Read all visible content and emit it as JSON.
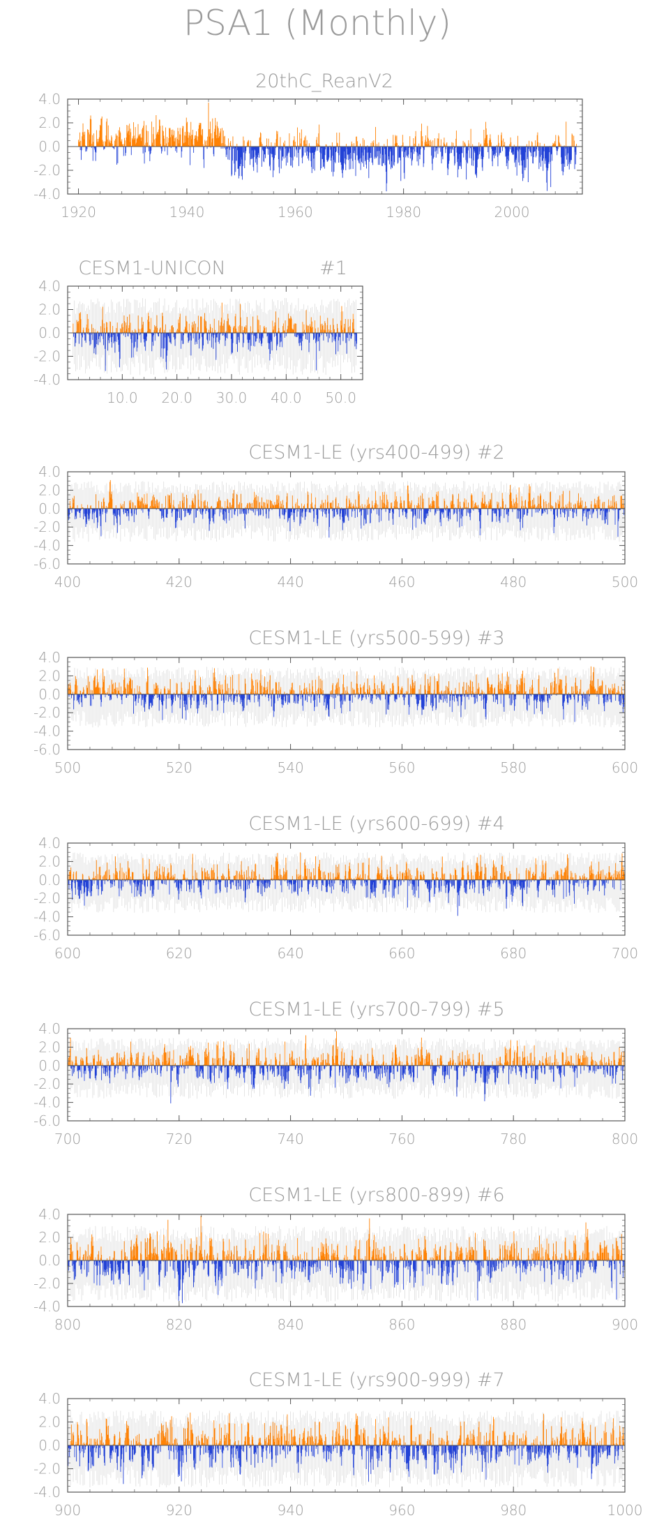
{
  "figure": {
    "title": "PSA1 (Monthly)"
  },
  "colors": {
    "positive": "#ff8000",
    "negative": "#1f3fd6",
    "axis": "#555555",
    "text": "#9a9a9a",
    "spread": "#c8c8c8"
  },
  "chart_data": [
    {
      "id": "panel-20thc",
      "type": "bar",
      "title": "20thC_ReanV2",
      "member": "",
      "xlim": [
        1918,
        2013
      ],
      "ylim": [
        -4,
        4
      ],
      "yticks": [
        "4.0",
        "2.0",
        "0.0",
        "-2.0",
        "-4.0"
      ],
      "ytick_values": [
        4,
        2,
        0,
        -2,
        -4
      ],
      "xticks": [
        "1920",
        "1940",
        "1960",
        "1980",
        "2000"
      ],
      "xtick_values": [
        1920,
        1940,
        1960,
        1980,
        2000
      ],
      "monthly_series": {
        "start": 1920,
        "end": 2011,
        "months_per_year": 12
      },
      "typical_amplitude": {
        "positive": 1.1,
        "negative": 1.3
      },
      "notable_values": [
        {
          "x": 1944,
          "y": 3.7
        },
        {
          "x": 1979.5,
          "y": -2.9
        },
        {
          "x": 2003,
          "y": -3.0
        },
        {
          "x": 2010,
          "y": 2.1
        }
      ],
      "segment_bias": [
        {
          "from": 1920,
          "to": 1947,
          "bias": 0.5
        },
        {
          "from": 1947,
          "to": 2011,
          "bias": -0.3
        }
      ],
      "spread_band": false
    },
    {
      "id": "panel-unicon",
      "type": "bar",
      "title": "CESM1-UNICON",
      "member": "#1",
      "xlim": [
        0,
        54
      ],
      "ylim": [
        -4,
        4
      ],
      "yticks": [
        "4.0",
        "2.0",
        "0.0",
        "-2.0",
        "-4.0"
      ],
      "ytick_values": [
        4,
        2,
        0,
        -2,
        -4
      ],
      "xticks": [
        "10.0",
        "20.0",
        "30.0",
        "40.0",
        "50.0"
      ],
      "xtick_values": [
        10,
        20,
        30,
        40,
        50
      ],
      "monthly_series": {
        "start": 1,
        "end": 52,
        "months_per_year": 12
      },
      "typical_amplitude": {
        "positive": 1.2,
        "negative": 1.3
      },
      "notable_values": [
        {
          "x": 45.5,
          "y": -3.2
        },
        {
          "x": 12,
          "y": -2.1
        }
      ],
      "segment_bias": [],
      "spread_band": true
    },
    {
      "id": "panel-le2",
      "type": "bar",
      "title": "CESM1-LE (yrs400-499)",
      "member": "#2",
      "xlim": [
        400,
        500
      ],
      "ylim": [
        -6,
        4
      ],
      "yticks": [
        "4.0",
        "2.0",
        "0.0",
        "-2.0",
        "-4.0",
        "-6.0"
      ],
      "ytick_values": [
        4,
        2,
        0,
        -2,
        -4,
        -6
      ],
      "xticks": [
        "400",
        "420",
        "440",
        "460",
        "480",
        "500"
      ],
      "xtick_values": [
        400,
        420,
        440,
        460,
        480,
        500
      ],
      "monthly_series": {
        "start": 400,
        "end": 499,
        "months_per_year": 12
      },
      "typical_amplitude": {
        "positive": 1.2,
        "negative": 1.3
      },
      "notable_values": [
        {
          "x": 461,
          "y": 2.5
        },
        {
          "x": 481,
          "y": 2.3
        },
        {
          "x": 406,
          "y": -3.0
        },
        {
          "x": 474,
          "y": -2.9
        }
      ],
      "segment_bias": [],
      "spread_band": true
    },
    {
      "id": "panel-le3",
      "type": "bar",
      "title": "CESM1-LE (yrs500-599)",
      "member": "#3",
      "xlim": [
        500,
        600
      ],
      "ylim": [
        -6,
        4
      ],
      "yticks": [
        "4.0",
        "2.0",
        "0.0",
        "-2.0",
        "-4.0",
        "-6.0"
      ],
      "ytick_values": [
        4,
        2,
        0,
        -2,
        -4,
        -6
      ],
      "xticks": [
        "500",
        "520",
        "540",
        "560",
        "580",
        "600"
      ],
      "xtick_values": [
        500,
        520,
        540,
        560,
        580,
        600
      ],
      "monthly_series": {
        "start": 500,
        "end": 599,
        "months_per_year": 12
      },
      "typical_amplitude": {
        "positive": 1.3,
        "negative": 1.3
      },
      "notable_values": [
        {
          "x": 588,
          "y": 2.8
        },
        {
          "x": 517,
          "y": -2.8
        },
        {
          "x": 591,
          "y": -3.0
        }
      ],
      "segment_bias": [],
      "spread_band": true
    },
    {
      "id": "panel-le4",
      "type": "bar",
      "title": "CESM1-LE (yrs600-699)",
      "member": "#4",
      "xlim": [
        600,
        700
      ],
      "ylim": [
        -6,
        4
      ],
      "yticks": [
        "4.0",
        "2.0",
        "0.0",
        "-2.0",
        "-4.0",
        "-6.0"
      ],
      "ytick_values": [
        4,
        2,
        0,
        -2,
        -4,
        -6
      ],
      "xticks": [
        "600",
        "620",
        "640",
        "660",
        "680",
        "700"
      ],
      "xtick_values": [
        600,
        620,
        640,
        660,
        680,
        700
      ],
      "monthly_series": {
        "start": 600,
        "end": 699,
        "months_per_year": 12
      },
      "typical_amplitude": {
        "positive": 1.3,
        "negative": 1.4
      },
      "notable_values": [
        {
          "x": 670,
          "y": -3.9
        },
        {
          "x": 661,
          "y": -3.0
        },
        {
          "x": 694,
          "y": 2.0
        }
      ],
      "segment_bias": [],
      "spread_band": true
    },
    {
      "id": "panel-le5",
      "type": "bar",
      "title": "CESM1-LE (yrs700-799)",
      "member": "#5",
      "xlim": [
        700,
        800
      ],
      "ylim": [
        -6,
        4
      ],
      "yticks": [
        "4.0",
        "2.0",
        "0.0",
        "-2.0",
        "-4.0",
        "-6.0"
      ],
      "ytick_values": [
        4,
        2,
        0,
        -2,
        -4,
        -6
      ],
      "xticks": [
        "700",
        "720",
        "740",
        "760",
        "780",
        "800"
      ],
      "xtick_values": [
        700,
        720,
        740,
        760,
        780,
        800
      ],
      "monthly_series": {
        "start": 700,
        "end": 799,
        "months_per_year": 12
      },
      "typical_amplitude": {
        "positive": 1.3,
        "negative": 1.3
      },
      "notable_values": [
        {
          "x": 718.5,
          "y": -4.1
        },
        {
          "x": 739,
          "y": 2.6
        },
        {
          "x": 748,
          "y": -2.4
        }
      ],
      "segment_bias": [],
      "spread_band": true
    },
    {
      "id": "panel-le6",
      "type": "bar",
      "title": "CESM1-LE (yrs800-899)",
      "member": "#6",
      "xlim": [
        800,
        900
      ],
      "ylim": [
        -4,
        4
      ],
      "yticks": [
        "4.0",
        "2.0",
        "0.0",
        "-2.0",
        "-4.0"
      ],
      "ytick_values": [
        4,
        2,
        0,
        -2,
        -4
      ],
      "xticks": [
        "800",
        "820",
        "840",
        "860",
        "880",
        "900"
      ],
      "xtick_values": [
        800,
        820,
        840,
        860,
        880,
        900
      ],
      "monthly_series": {
        "start": 800,
        "end": 899,
        "months_per_year": 12
      },
      "typical_amplitude": {
        "positive": 1.3,
        "negative": 1.4
      },
      "notable_values": [
        {
          "x": 893,
          "y": 3.3
        },
        {
          "x": 898.5,
          "y": -3.4
        },
        {
          "x": 827,
          "y": -3.0
        },
        {
          "x": 836,
          "y": 2.3
        }
      ],
      "segment_bias": [],
      "spread_band": true
    },
    {
      "id": "panel-le7",
      "type": "bar",
      "title": "CESM1-LE (yrs900-999)",
      "member": "#7",
      "xlim": [
        900,
        1000
      ],
      "ylim": [
        -4,
        4
      ],
      "yticks": [
        "4.0",
        "2.0",
        "0.0",
        "-2.0",
        "-4.0"
      ],
      "ytick_values": [
        4,
        2,
        0,
        -2,
        -4
      ],
      "xticks": [
        "900",
        "920",
        "940",
        "960",
        "980",
        "1000"
      ],
      "xtick_values": [
        900,
        920,
        940,
        960,
        980,
        1000
      ],
      "monthly_series": {
        "start": 900,
        "end": 999,
        "months_per_year": 12
      },
      "typical_amplitude": {
        "positive": 1.4,
        "negative": 1.4
      },
      "notable_values": [
        {
          "x": 922,
          "y": 2.8
        },
        {
          "x": 954,
          "y": -3.1
        },
        {
          "x": 910,
          "y": -3.3
        }
      ],
      "segment_bias": [],
      "spread_band": true
    }
  ]
}
